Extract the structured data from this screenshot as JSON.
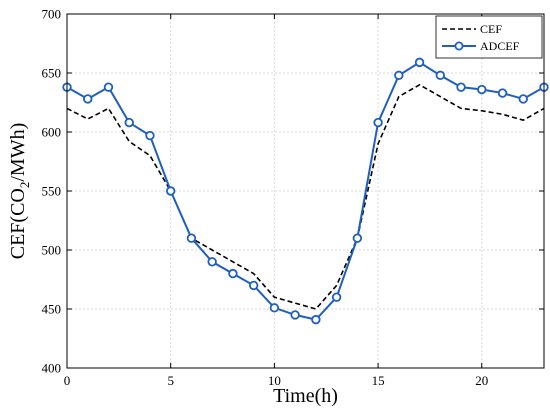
{
  "chart_data": {
    "type": "line",
    "title": "",
    "xlabel": "Time(h)",
    "ylabel_parts": [
      "CEF(CO",
      "2",
      "/MWh)"
    ],
    "xlim": [
      0,
      23
    ],
    "ylim": [
      400,
      700
    ],
    "xticks": [
      0,
      5,
      10,
      15,
      20
    ],
    "yticks": [
      400,
      450,
      500,
      550,
      600,
      650,
      700
    ],
    "grid": true,
    "legend_position": "top-right",
    "x": [
      0,
      1,
      2,
      3,
      4,
      5,
      6,
      7,
      8,
      9,
      10,
      11,
      12,
      13,
      14,
      15,
      16,
      17,
      18,
      19,
      20,
      21,
      22,
      23
    ],
    "series": [
      {
        "name": "CEF",
        "style": "dashed",
        "color": "#000000",
        "values": [
          620,
          611,
          620,
          592,
          580,
          550,
          510,
          500,
          490,
          480,
          460,
          455,
          450,
          470,
          510,
          590,
          630,
          640,
          630,
          620,
          618,
          615,
          610,
          620
        ]
      },
      {
        "name": "ADCEF",
        "style": "solid-marker",
        "color": "#1f5fbf",
        "values": [
          638,
          628,
          638,
          608,
          597,
          550,
          510,
          490,
          480,
          470,
          451,
          445,
          441,
          460,
          510,
          608,
          648,
          659,
          648,
          638,
          636,
          633,
          628,
          638
        ]
      }
    ]
  }
}
